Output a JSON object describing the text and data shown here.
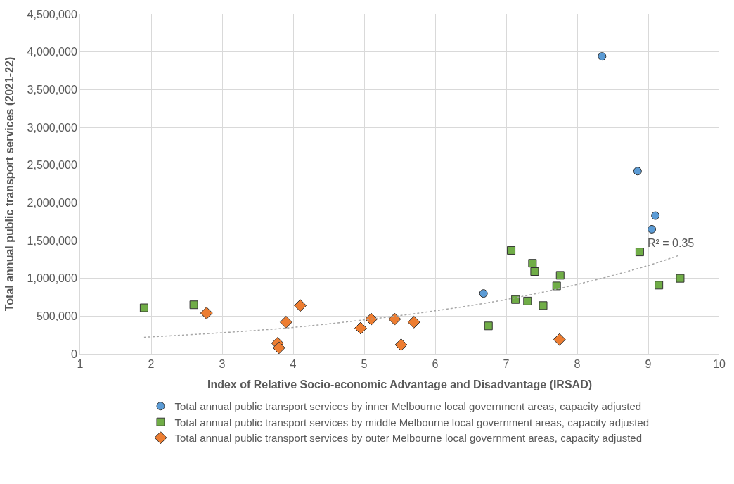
{
  "chart_data": {
    "type": "scatter",
    "xlabel": "Index of Relative Socio-economic Advantage and Disadvantage (IRSAD)",
    "ylabel": "Total annual public transport services (2021-22)",
    "xlim": [
      1,
      10
    ],
    "xticks": [
      1,
      2,
      3,
      4,
      5,
      6,
      7,
      8,
      9,
      10
    ],
    "ylim": [
      0,
      4500000
    ],
    "yticks": [
      {
        "value": 0,
        "label": "0"
      },
      {
        "value": 500000,
        "label": "500,000"
      },
      {
        "value": 1000000,
        "label": "1,000,000"
      },
      {
        "value": 1500000,
        "label": "1,500,000"
      },
      {
        "value": 2000000,
        "label": "2,000,000"
      },
      {
        "value": 2500000,
        "label": "2,500,000"
      },
      {
        "value": 3000000,
        "label": "3,000,000"
      },
      {
        "value": 3500000,
        "label": "3,500,000"
      },
      {
        "value": 4000000,
        "label": "4,000,000"
      },
      {
        "value": 4500000,
        "label": "4,500,000"
      }
    ],
    "grid": true,
    "legend": "bottom",
    "series": [
      {
        "name": "Total annual public transport services by inner Melbourne local government areas, capacity adjusted",
        "color": "#5b9bd5",
        "marker": "circle",
        "x": [
          6.68,
          8.35,
          8.85,
          9.1,
          9.05
        ],
        "values": [
          800000,
          3940000,
          2420000,
          1830000,
          1650000
        ]
      },
      {
        "name": "Total annual public transport services by middle Melbourne local government areas, capacity adjusted",
        "color": "#70ad47",
        "marker": "square",
        "x": [
          1.9,
          2.6,
          6.75,
          7.07,
          7.13,
          7.3,
          7.37,
          7.4,
          7.52,
          7.71,
          7.76,
          8.88,
          9.15,
          9.45
        ],
        "values": [
          610000,
          650000,
          370000,
          1370000,
          720000,
          700000,
          1200000,
          1090000,
          640000,
          900000,
          1040000,
          1350000,
          910000,
          1000000
        ]
      },
      {
        "name": "Total annual public transport services by outer Melbourne local government areas, capacity adjusted",
        "color": "#ed7d31",
        "marker": "diamond",
        "x": [
          2.78,
          3.78,
          3.8,
          3.9,
          4.1,
          4.95,
          5.1,
          5.43,
          5.52,
          5.7,
          7.75
        ],
        "values": [
          540000,
          140000,
          80000,
          420000,
          640000,
          340000,
          460000,
          460000,
          120000,
          420000,
          190000
        ]
      },
      {
        "type": "line",
        "color": "#a6a6a6",
        "line_style": "dotted",
        "marker": "none",
        "x": [
          1.9,
          3,
          4,
          5,
          6,
          7,
          8,
          9,
          9.45
        ],
        "values": [
          220000,
          280000,
          350000,
          450000,
          570000,
          720000,
          920000,
          1170000,
          1310000
        ]
      }
    ],
    "annotations": [
      "R² = 0.35"
    ]
  }
}
